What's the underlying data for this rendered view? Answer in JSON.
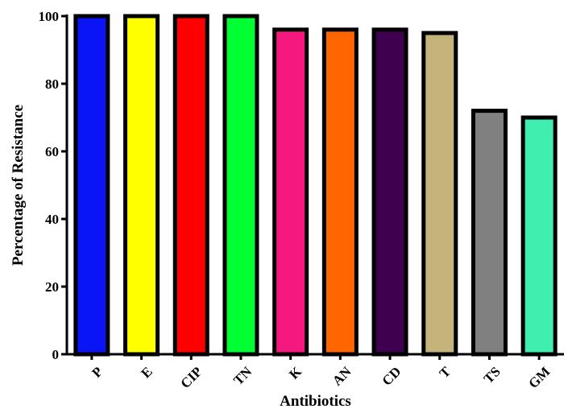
{
  "chart_data": {
    "type": "bar",
    "title": "",
    "xlabel": "Antibiotics",
    "ylabel": "Percentage of Resistance",
    "categories": [
      "P",
      "E",
      "CIP",
      "TN",
      "K",
      "AN",
      "CD",
      "T",
      "TS",
      "GM"
    ],
    "values": [
      100,
      100,
      100,
      100,
      96,
      96,
      96,
      95,
      72,
      70
    ],
    "colors": [
      "#0a14f5",
      "#ffff00",
      "#ff0000",
      "#00ff33",
      "#f5197f",
      "#ff6600",
      "#3f0050",
      "#c4b47b",
      "#808080",
      "#40eeb0"
    ],
    "ylim": [
      0,
      100
    ],
    "yticks": [
      "0",
      "20",
      "40",
      "60",
      "80",
      "100"
    ],
    "grid": false,
    "legend": "none"
  }
}
